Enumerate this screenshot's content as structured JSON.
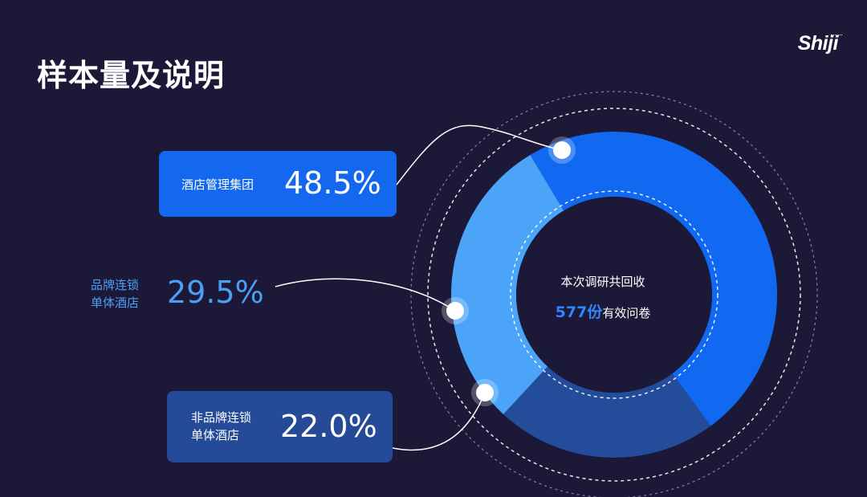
{
  "slide": {
    "title": "样本量及说明",
    "logo": "Shiji"
  },
  "labels": [
    {
      "name_line1": "酒店管理集团",
      "name_line2": "",
      "value_text": "48.5%"
    },
    {
      "name_line1": "品牌连锁",
      "name_line2": "单体酒店",
      "value_text": "29.5%"
    },
    {
      "name_line1": "非品牌连锁",
      "name_line2": "单体酒店",
      "value_text": "22.0%"
    }
  ],
  "center": {
    "line1": "本次调研共回收",
    "count": "577份",
    "line2_suffix": "有效问卷"
  },
  "chart_data": {
    "type": "pie",
    "title": "样本量及说明",
    "categories": [
      "酒店管理集团",
      "品牌连锁单体酒店",
      "非品牌连锁单体酒店"
    ],
    "values": [
      48.5,
      29.5,
      22.0
    ],
    "colors": [
      "#1169f2",
      "#4ba4f8",
      "#234c9b"
    ],
    "donut": true,
    "center_text": "本次调研共回收 577份有效问卷"
  }
}
